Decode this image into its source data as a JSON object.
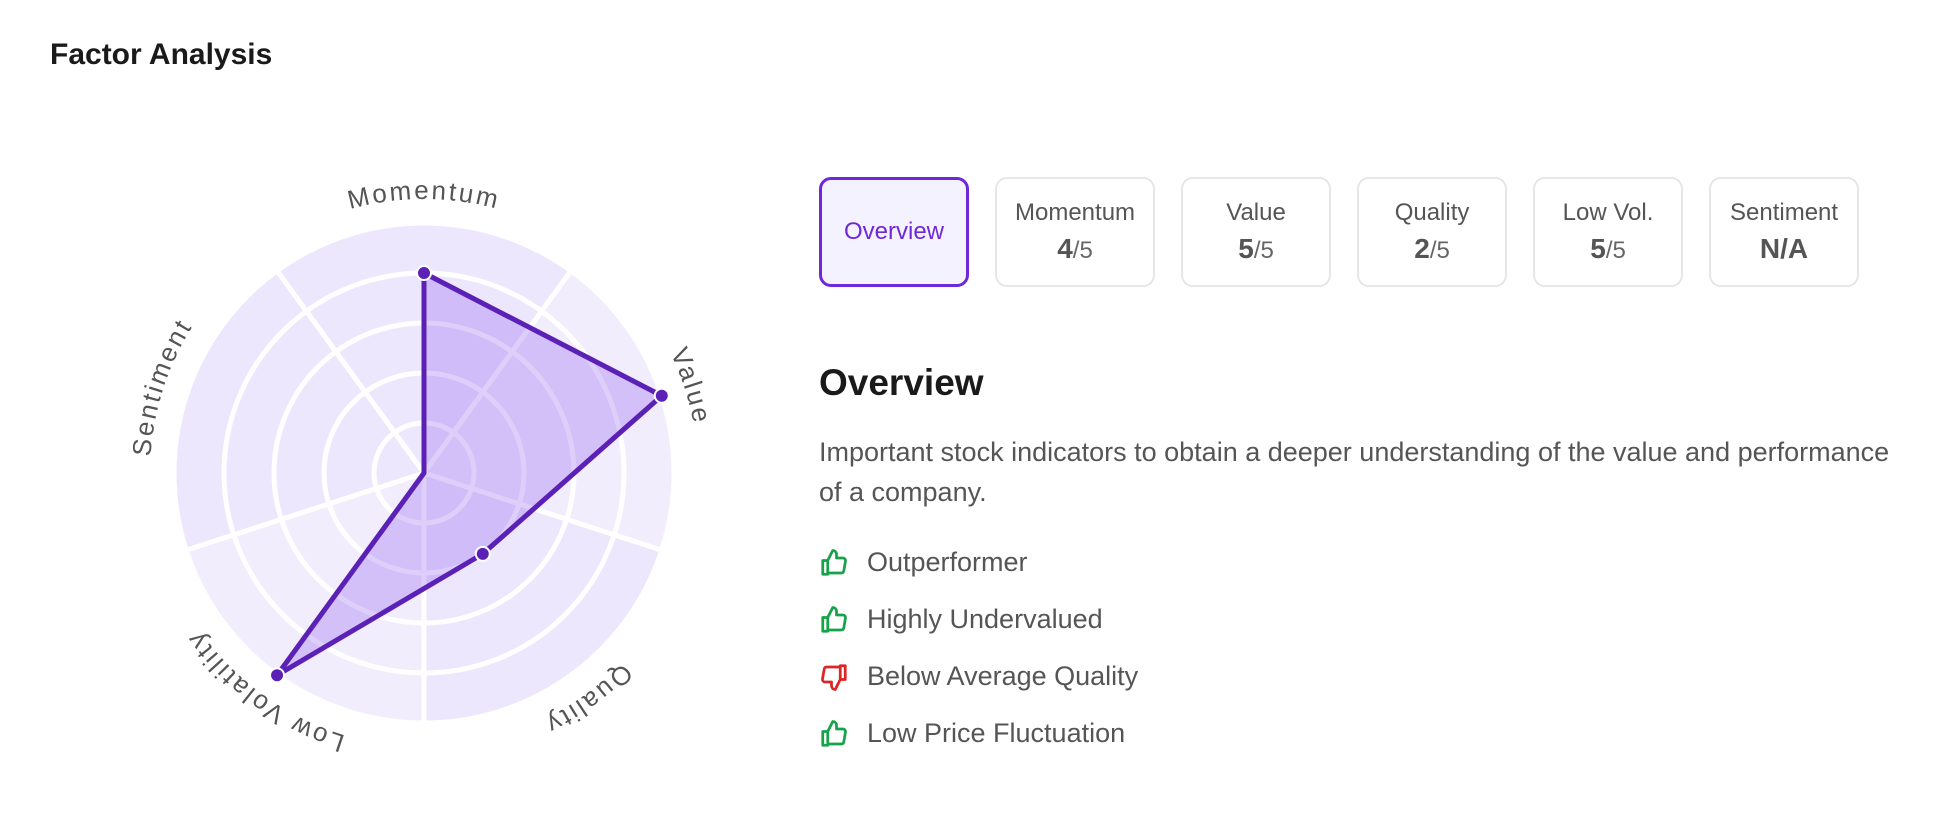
{
  "title": "Factor Analysis",
  "chart_data": {
    "type": "radar",
    "categories": [
      "Momentum",
      "Value",
      "Quality",
      "Low Volatility",
      "Sentiment"
    ],
    "values": [
      4,
      5,
      2,
      5,
      null
    ],
    "value_labels": [
      "4",
      "5",
      "2",
      "5",
      "N/A"
    ],
    "rlim": [
      0,
      5
    ],
    "rticks": [
      1,
      2,
      3,
      4,
      5
    ],
    "color": "#5b21b6"
  },
  "tabs": [
    {
      "label": "Overview"
    },
    {
      "label": "Momentum",
      "out_of": "/5"
    },
    {
      "label": "Value",
      "out_of": "/5"
    },
    {
      "label": "Quality",
      "out_of": "/5"
    },
    {
      "label": "Low Vol.",
      "out_of": "/5"
    },
    {
      "label": "Sentiment"
    }
  ],
  "active_tab": 0,
  "panel": {
    "heading": "Overview",
    "description": "Important stock indicators to obtain a deeper understanding of the value and performance of a company.",
    "items": [
      {
        "text": "Outperformer",
        "sentiment": "positive"
      },
      {
        "text": "Highly Undervalued",
        "sentiment": "positive"
      },
      {
        "text": "Below Average Quality",
        "sentiment": "negative"
      },
      {
        "text": "Low Price Fluctuation",
        "sentiment": "positive"
      }
    ]
  }
}
